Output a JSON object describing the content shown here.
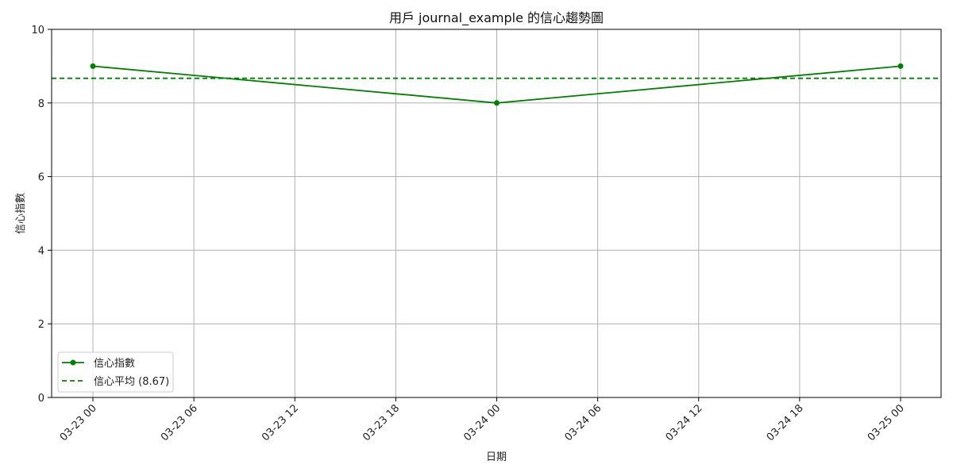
{
  "chart_data": {
    "type": "line",
    "title": "用戶 journal_example 的信心趨勢圖",
    "xlabel": "日期",
    "ylabel": "信心指數",
    "x_tick_labels": [
      "03-23 00",
      "03-23 06",
      "03-23 12",
      "03-23 18",
      "03-24 00",
      "03-24 06",
      "03-24 12",
      "03-24 18",
      "03-25 00"
    ],
    "y_tick_labels": [
      "0",
      "2",
      "4",
      "6",
      "8",
      "10"
    ],
    "ylim": [
      0,
      10
    ],
    "grid": true,
    "legend_position": "lower-left",
    "series": [
      {
        "name": "信心指數",
        "x": [
          "03-23 00",
          "03-24 00",
          "03-25 00"
        ],
        "values": [
          9,
          8,
          9
        ],
        "color": "#008000",
        "style": "solid-with-markers"
      }
    ],
    "reference_lines": [
      {
        "name": "信心平均 (8.67)",
        "value": 8.67,
        "color": "#008000",
        "style": "dashed"
      }
    ]
  }
}
